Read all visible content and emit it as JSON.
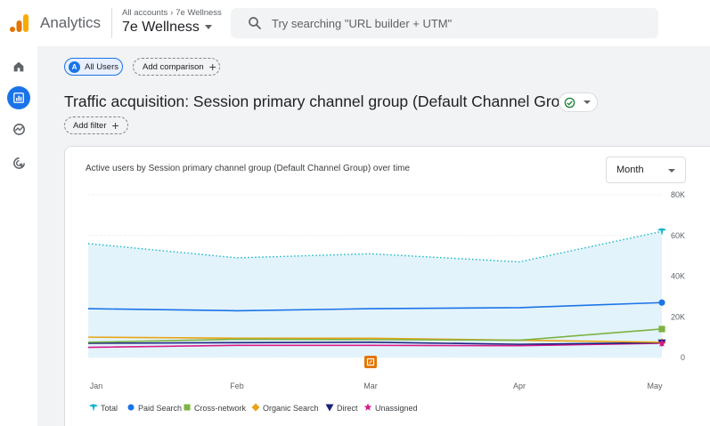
{
  "app": {
    "name": "Analytics",
    "breadcrumb": [
      "All accounts",
      "7e Wellness"
    ],
    "property": "7e Wellness"
  },
  "search": {
    "placeholder": "Try searching \"URL builder + UTM\""
  },
  "nav": [
    {
      "icon": "home-icon",
      "active": false
    },
    {
      "icon": "reports-icon",
      "active": true
    },
    {
      "icon": "explore-icon",
      "active": false
    },
    {
      "icon": "advertising-icon",
      "active": false
    }
  ],
  "comparisons": {
    "active_letter": "A",
    "active_label": "All Users",
    "add_label": "Add comparison"
  },
  "page_title": "Traffic acquisition: Session primary channel group (Default Channel Group)",
  "filter": {
    "add_label": "Add filter"
  },
  "card": {
    "title": "Active users by Session primary channel group (Default Channel Group) over time",
    "period": "Month"
  },
  "colors": {
    "accent": "#1a73e8",
    "total": "#12b5cb",
    "total_fill": "#e3f3fb",
    "paid_search": "#1a73e8",
    "cross_network": "#7cb342",
    "organic_search": "#e8a417",
    "direct": "#1a237e",
    "unassigned": "#d81b8c"
  },
  "chart_data": {
    "type": "line",
    "x": [
      "Jan",
      "Feb",
      "Mar",
      "Apr",
      "May"
    ],
    "ylim": [
      0,
      80000
    ],
    "yticks": [
      0,
      20000,
      40000,
      60000,
      80000
    ],
    "ytick_labels": [
      "0",
      "20K",
      "40K",
      "60K",
      "80K"
    ],
    "grid": true,
    "legend_position": "bottom-left",
    "annotation_month": "Mar",
    "series": [
      {
        "name": "Total",
        "key": "total",
        "values": [
          56000,
          49000,
          51000,
          47000,
          62000
        ],
        "marker": "pin",
        "style": "dotted",
        "fill": true
      },
      {
        "name": "Paid Search",
        "key": "paid_search",
        "values": [
          24000,
          23000,
          24000,
          24500,
          27000
        ],
        "marker": "circle",
        "style": "solid"
      },
      {
        "name": "Cross-network",
        "key": "cross_network",
        "values": [
          7500,
          9000,
          8800,
          8500,
          14000
        ],
        "marker": "square",
        "style": "solid"
      },
      {
        "name": "Organic Search",
        "key": "organic_search",
        "values": [
          10000,
          9500,
          9500,
          8500,
          7500
        ],
        "marker": "diamond",
        "style": "solid"
      },
      {
        "name": "Direct",
        "key": "direct",
        "values": [
          7000,
          7300,
          7500,
          6500,
          7300
        ],
        "marker": "triangle",
        "style": "solid"
      },
      {
        "name": "Unassigned",
        "key": "unassigned",
        "values": [
          5000,
          6000,
          6000,
          5800,
          7000
        ],
        "marker": "star",
        "style": "solid"
      }
    ]
  }
}
